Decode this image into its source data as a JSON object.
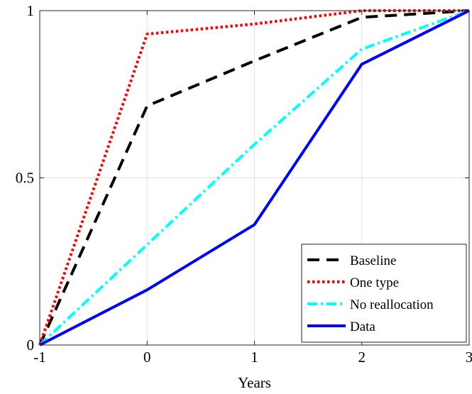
{
  "chart_data": {
    "type": "line",
    "title": "",
    "xlabel": "Years",
    "ylabel": "",
    "xlim": [
      -1,
      3
    ],
    "ylim": [
      0,
      1
    ],
    "xticks": [
      -1,
      0,
      1,
      2,
      3
    ],
    "xtick_labels": [
      "-1",
      "0",
      "1",
      "2",
      "3"
    ],
    "yticks": [
      0,
      0.5,
      1
    ],
    "ytick_labels": [
      "0",
      "0.5",
      "1"
    ],
    "grid": true,
    "legend_position": "bottom-right",
    "x": [
      -1,
      0,
      1,
      2,
      3
    ],
    "series": [
      {
        "name": "Baseline",
        "values": [
          0,
          0.715,
          0.85,
          0.98,
          1.0
        ],
        "color": "#000000",
        "style": "dashed"
      },
      {
        "name": "One type",
        "values": [
          0,
          0.93,
          0.96,
          1.0,
          1.0
        ],
        "color": "#ff0000",
        "style": "dotted"
      },
      {
        "name": "No reallocation",
        "values": [
          0,
          0.3,
          0.6,
          0.885,
          1.0
        ],
        "color": "#00ffff",
        "style": "dashdot"
      },
      {
        "name": "Data",
        "values": [
          0,
          0.165,
          0.36,
          0.84,
          1.0
        ],
        "color": "#0000ff",
        "style": "solid"
      }
    ]
  }
}
